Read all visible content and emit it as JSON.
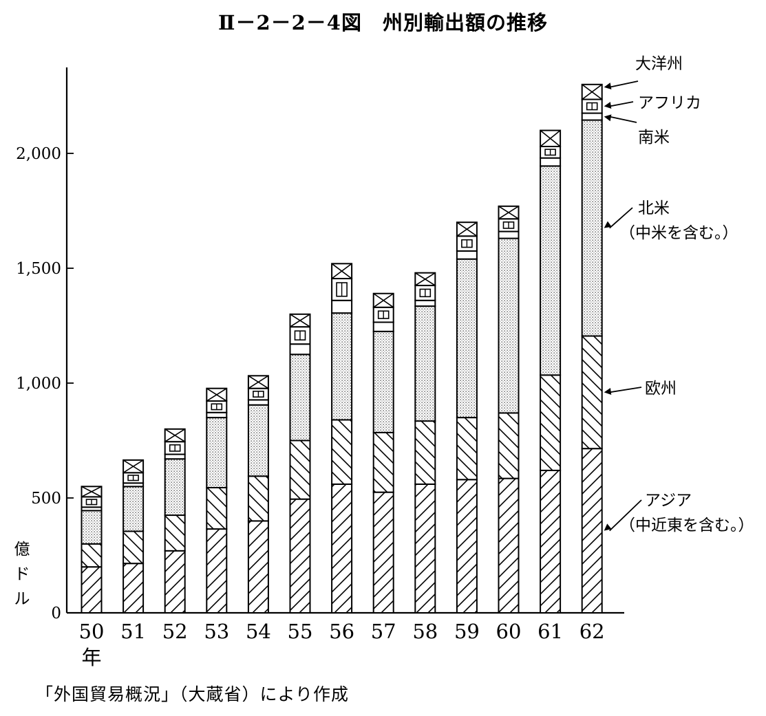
{
  "title": "Ⅱ－2－2－4図　州別輸出額の推移",
  "source": "「外国貿易概況」（大蔵省）により作成",
  "chart_data": {
    "type": "bar",
    "stacked": true,
    "ylabel": [
      "億",
      "ド",
      "ル"
    ],
    "xlabel_suffix": "年",
    "ylim": [
      0,
      2400
    ],
    "yticks": [
      0,
      500,
      1000,
      1500,
      2000
    ],
    "ytick_labels": [
      "0",
      "500",
      "1,000",
      "1,500",
      "2,000"
    ],
    "categories": [
      "50",
      "51",
      "52",
      "53",
      "54",
      "55",
      "56",
      "57",
      "58",
      "59",
      "60",
      "61",
      "62"
    ],
    "series": [
      {
        "name": "アジア（中近東を含む。）",
        "pattern": "hatch-fwd",
        "values": [
          200,
          215,
          270,
          365,
          400,
          495,
          560,
          525,
          560,
          580,
          585,
          620,
          715
        ]
      },
      {
        "name": "欧州",
        "pattern": "hatch-back",
        "values": [
          100,
          140,
          155,
          180,
          195,
          255,
          280,
          260,
          275,
          270,
          285,
          415,
          490
        ]
      },
      {
        "name": "北米（中米を含む。）",
        "pattern": "dots",
        "values": [
          145,
          195,
          245,
          305,
          310,
          375,
          465,
          440,
          500,
          690,
          760,
          910,
          940
        ]
      },
      {
        "name": "南米",
        "pattern": "blank",
        "values": [
          15,
          15,
          20,
          22,
          22,
          45,
          55,
          40,
          25,
          35,
          30,
          35,
          30
        ]
      },
      {
        "name": "アフリカ",
        "pattern": "box",
        "values": [
          45,
          45,
          55,
          50,
          50,
          75,
          95,
          65,
          65,
          65,
          55,
          50,
          60
        ]
      },
      {
        "name": "大洋州",
        "pattern": "cross",
        "values": [
          45,
          55,
          55,
          55,
          55,
          55,
          65,
          60,
          55,
          60,
          55,
          70,
          65
        ]
      }
    ],
    "legend_lines": [
      [
        "大洋州"
      ],
      [
        "アフリカ"
      ],
      [
        "南米"
      ],
      [
        "北米",
        "（中米を含む。）"
      ],
      [
        "欧州"
      ],
      [
        "アジア",
        "（中近東を含む。）"
      ]
    ]
  }
}
